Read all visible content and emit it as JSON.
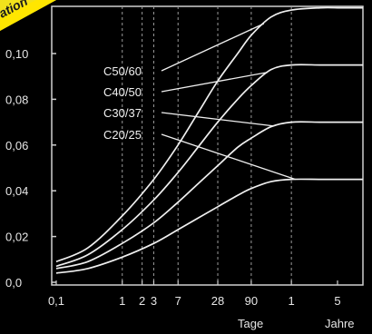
{
  "chart_data": {
    "type": "line",
    "title": "",
    "xlabel": "",
    "ylabel": "",
    "x_scale": "log",
    "xlim_days": [
      0.1,
      1825
    ],
    "ylim": [
      0.0,
      0.12
    ],
    "grid": "vertical-dashed",
    "x_ticks": [
      {
        "label": "0,1",
        "days": 0.1
      },
      {
        "label": "1",
        "days": 1
      },
      {
        "label": "2",
        "days": 2
      },
      {
        "label": "3",
        "days": 3
      },
      {
        "label": "7",
        "days": 7
      },
      {
        "label": "28",
        "days": 28
      },
      {
        "label": "90",
        "days": 90
      },
      {
        "label": "1",
        "days": 365
      },
      {
        "label": "5",
        "days": 1825
      }
    ],
    "x_unit_labels": {
      "days": "Tage",
      "years": "Jahre"
    },
    "y_ticks": [
      "0,0",
      "0,02",
      "0,04",
      "0,06",
      "0,08",
      "0,10"
    ],
    "y_tick_values": [
      0.0,
      0.02,
      0.04,
      0.06,
      0.08,
      0.1
    ],
    "x": [
      0.1,
      0.3,
      1,
      3,
      7,
      14,
      28,
      56,
      90,
      180,
      365,
      1000,
      1825
    ],
    "series": [
      {
        "name": "C50/60",
        "values": [
          0.009,
          0.015,
          0.029,
          0.045,
          0.06,
          0.074,
          0.088,
          0.1,
          0.108,
          0.116,
          0.119,
          0.12,
          0.12
        ]
      },
      {
        "name": "C40/50",
        "values": [
          0.007,
          0.012,
          0.023,
          0.036,
          0.048,
          0.059,
          0.07,
          0.08,
          0.086,
          0.093,
          0.095,
          0.095,
          0.095
        ]
      },
      {
        "name": "C30/37",
        "values": [
          0.006,
          0.009,
          0.017,
          0.026,
          0.035,
          0.043,
          0.051,
          0.059,
          0.063,
          0.068,
          0.07,
          0.07,
          0.07
        ]
      },
      {
        "name": "C20/25",
        "values": [
          0.004,
          0.006,
          0.011,
          0.017,
          0.023,
          0.028,
          0.033,
          0.038,
          0.041,
          0.044,
          0.045,
          0.045,
          0.045
        ]
      }
    ]
  },
  "corner_text": "ation"
}
